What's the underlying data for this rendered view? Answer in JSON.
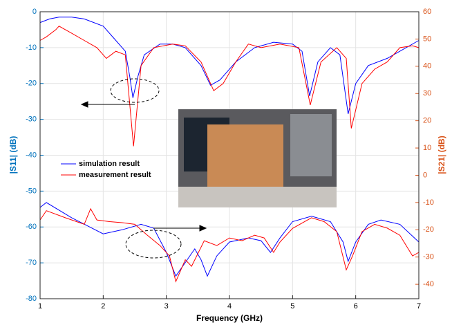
{
  "chart_data": {
    "type": "line",
    "x_label": "Frequency (GHz)",
    "y_label": "|S11| (dB)",
    "y2_label": "|S21| (dB)",
    "xlim": [
      1,
      7
    ],
    "xticks": [
      1,
      2,
      3,
      4,
      5,
      6,
      7
    ],
    "ylim": [
      -80,
      0
    ],
    "yticks": [
      0,
      -10,
      -20,
      -30,
      -40,
      -50,
      -60,
      -70,
      -80
    ],
    "y2lim": [
      -45.3,
      60
    ],
    "y2ticks": [
      60,
      50,
      40,
      30,
      20,
      10,
      0,
      -10,
      -20,
      -30,
      -40
    ],
    "y_color": "#0072bd",
    "y2_color": "#d95319",
    "grid": true,
    "series": [
      {
        "name": "simulation result",
        "color": "#0000ff",
        "x": [
          1.0,
          1.15,
          1.3,
          1.5,
          1.7,
          2.0,
          2.2,
          2.35,
          2.42,
          2.47,
          2.55,
          2.65,
          2.9,
          3.1,
          3.3,
          3.55,
          3.7,
          3.85,
          4.1,
          4.4,
          4.7,
          5.0,
          5.15,
          5.27,
          5.4,
          5.6,
          5.75,
          5.88,
          6.0,
          6.2,
          6.5,
          6.7,
          7.0
        ],
        "values": [
          -3,
          -2,
          -1.5,
          -1.5,
          -2,
          -4,
          -8,
          -11,
          -18,
          -24,
          -18,
          -12,
          -9,
          -9,
          -10,
          -15,
          -20.5,
          -19,
          -14,
          -10,
          -8.5,
          -9,
          -11,
          -23.5,
          -14,
          -10,
          -12,
          -28.5,
          -20,
          -15,
          -13,
          -11,
          -8
        ]
      },
      {
        "name": "measurement result",
        "color": "#ff0000",
        "x": [
          1.0,
          1.1,
          1.25,
          1.3,
          1.5,
          1.7,
          1.9,
          2.05,
          2.2,
          2.35,
          2.48,
          2.6,
          2.8,
          3.1,
          3.3,
          3.55,
          3.75,
          3.9,
          4.1,
          4.3,
          4.5,
          4.8,
          5.1,
          5.28,
          5.45,
          5.7,
          5.85,
          5.93,
          6.1,
          6.3,
          6.5,
          6.7,
          6.9,
          7.0
        ],
        "values": [
          -8,
          -7,
          -5,
          -4,
          -6,
          -8,
          -10,
          -13,
          -11,
          -12,
          -37.5,
          -15,
          -10,
          -9,
          -9.5,
          -14,
          -22,
          -20,
          -14,
          -9,
          -10,
          -9,
          -10,
          -26,
          -14,
          -10,
          -13,
          -32.5,
          -20,
          -16,
          -14,
          -10,
          -9.5,
          -10
        ]
      },
      {
        "color": "#0000ff",
        "axis": "y2",
        "x": [
          1.0,
          1.1,
          1.5,
          2.0,
          2.3,
          2.6,
          2.8,
          3.0,
          3.15,
          3.3,
          3.45,
          3.55,
          3.65,
          3.8,
          4.0,
          4.3,
          4.5,
          4.65,
          4.8,
          5.0,
          5.3,
          5.6,
          5.8,
          5.88,
          6.0,
          6.2,
          6.4,
          6.7,
          7.0
        ],
        "values": [
          -11.8,
          -10,
          -15.6,
          -21.5,
          -20,
          -18,
          -19.4,
          -28.3,
          -37,
          -32,
          -27,
          -31,
          -37,
          -29.6,
          -24.5,
          -23,
          -24,
          -28.3,
          -23,
          -17,
          -15,
          -17,
          -24.5,
          -31.6,
          -24.5,
          -18,
          -16.4,
          -18,
          -24.5
        ]
      },
      {
        "color": "#ff0000",
        "axis": "y2",
        "x": [
          1.0,
          1.1,
          1.4,
          1.7,
          1.8,
          1.9,
          2.1,
          2.3,
          2.5,
          2.7,
          2.9,
          3.05,
          3.15,
          3.3,
          3.4,
          3.6,
          3.8,
          4.0,
          4.2,
          4.4,
          4.55,
          4.7,
          4.8,
          5.0,
          5.3,
          5.5,
          5.7,
          5.85,
          5.95,
          6.1,
          6.3,
          6.5,
          6.7,
          6.9,
          7.0
        ],
        "values": [
          -16.4,
          -13,
          -15.6,
          -18,
          -12.3,
          -16.4,
          -17,
          -17.4,
          -18,
          -22,
          -25.8,
          -29.6,
          -39,
          -31,
          -33.4,
          -24,
          -25.8,
          -23,
          -24,
          -22,
          -23,
          -28.3,
          -24.5,
          -19.5,
          -15.6,
          -17,
          -20.7,
          -34.7,
          -29.6,
          -20.7,
          -18,
          -19.4,
          -22,
          -29.6,
          -28.3
        ]
      }
    ]
  }
}
